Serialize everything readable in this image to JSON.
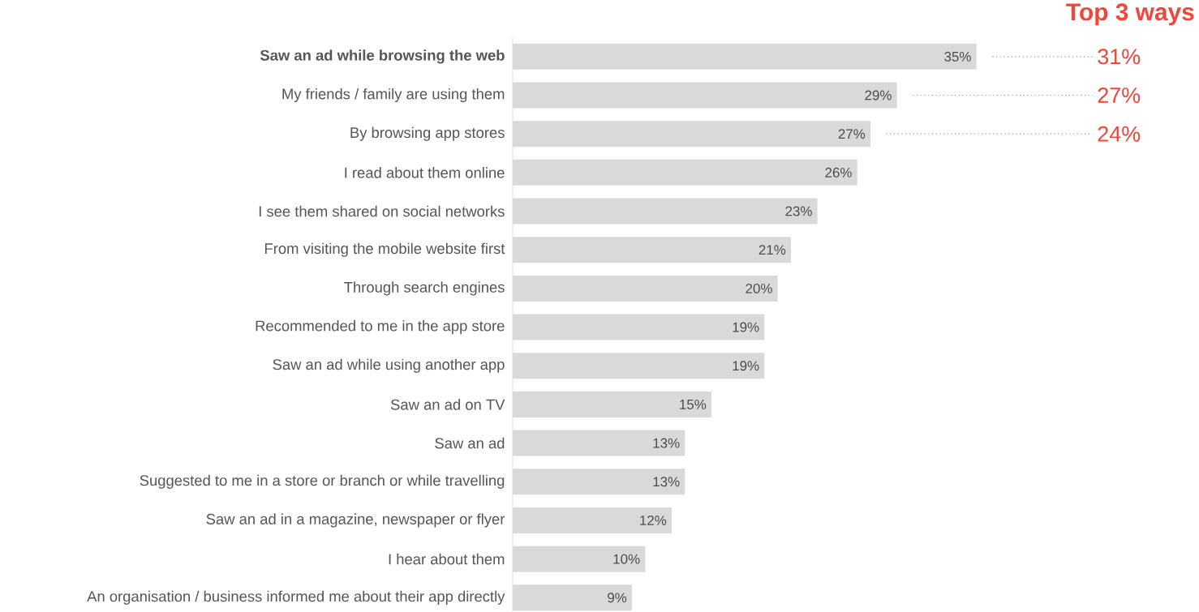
{
  "chart_data": {
    "type": "bar",
    "orientation": "horizontal",
    "color": "#d9d9d9",
    "categories": [
      "Saw an ad while browsing the web",
      "My friends / family are using them",
      "By browsing app stores",
      "I read about them online",
      "I see them shared on social networks",
      "From visiting the mobile website first",
      "Through search engines",
      "Recommended to me in the app store",
      "Saw an ad while using another app",
      "Saw an ad on TV",
      "Saw an ad",
      "Suggested to me in a store or branch or while travelling",
      "Saw an ad in a magazine, newspaper or flyer",
      "I hear about them",
      "An organisation / business informed me about their app directly"
    ],
    "values": [
      35,
      29,
      27,
      26,
      23,
      21,
      20,
      19,
      19,
      15,
      13,
      13,
      12,
      10,
      9
    ],
    "value_labels": [
      "35%",
      "29%",
      "27%",
      "26%",
      "23%",
      "21%",
      "20%",
      "19%",
      "19%",
      "15%",
      "13%",
      "13%",
      "12%",
      "10%",
      "9%"
    ],
    "annotations": [
      "Top 3 ways",
      "31%",
      "27%",
      "24%"
    ]
  }
}
